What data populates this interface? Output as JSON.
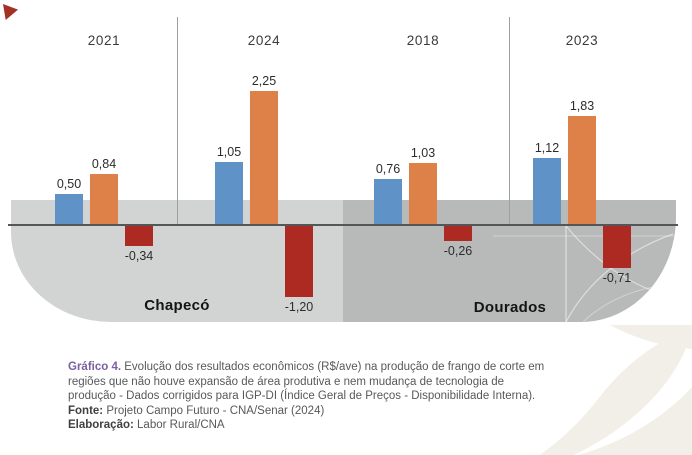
{
  "chart_data": {
    "type": "bar",
    "unit": "R$/ave",
    "legend": "none",
    "baseline_value": 0,
    "series_colors": [
      "#5f93c8",
      "#dd8149",
      "#ad2a23"
    ],
    "regions": [
      {
        "name": "Chapecó",
        "groups": [
          {
            "year": "2021",
            "bars": [
              {
                "value": 0.5,
                "label": "0,50"
              },
              {
                "value": 0.84,
                "label": "0,84"
              },
              {
                "value": -0.34,
                "label": "-0,34"
              }
            ]
          },
          {
            "year": "2024",
            "bars": [
              {
                "value": 1.05,
                "label": "1,05"
              },
              {
                "value": 2.25,
                "label": "2,25"
              },
              {
                "value": -1.2,
                "label": "-1,20"
              }
            ]
          }
        ]
      },
      {
        "name": "Dourados",
        "groups": [
          {
            "year": "2018",
            "bars": [
              {
                "value": 0.76,
                "label": "0,76"
              },
              {
                "value": 1.03,
                "label": "1,03"
              },
              {
                "value": -0.26,
                "label": "-0,26"
              }
            ]
          },
          {
            "year": "2023",
            "bars": [
              {
                "value": 1.12,
                "label": "1,12"
              },
              {
                "value": 1.83,
                "label": "1,83"
              },
              {
                "value": -0.71,
                "label": "-0,71"
              }
            ]
          }
        ]
      }
    ]
  },
  "caption": {
    "title": "Gráfico 4.",
    "body": "Evolução dos resultados econômicos (R$/ave) na produção de frango de corte em regiões que não houve expansão de área produtiva e nem mudança de tecnologia de produção - Dados corrigidos para IGP-DI (Índice Geral de Preços - Disponibilidade Interna).",
    "source_label": "Fonte:",
    "source_value": "Projeto Campo Futuro - CNA/Senar (2024)",
    "elaboration_label": "Elaboração:",
    "elaboration_value": "Labor Rural/CNA"
  },
  "colors": {
    "bar_blue": "#5f93c8",
    "bar_orange": "#dd8149",
    "bar_red": "#ad2a23",
    "region_light": "#d2d4d3",
    "region_dark": "#b8bab9",
    "baseline": "#54575a",
    "caption_title": "#7b5fa0",
    "caption_text": "#57585a",
    "corner_accent": "#a43125",
    "watermark_beige": "#f1efe8"
  }
}
